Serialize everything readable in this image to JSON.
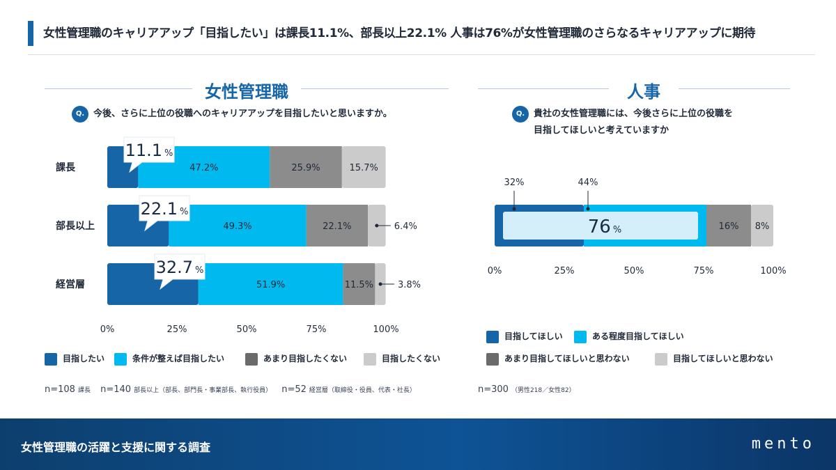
{
  "header": {
    "title": "女性管理職のキャリアアップ「目指したい」は課長11.1%、部長以上22.1% 人事は76%が女性管理職のさらなるキャリアアップに期待"
  },
  "colors": {
    "brand": "#1565a7",
    "c1": "#1565a7",
    "c2": "#00b9ee",
    "c3": "#8c8c8c",
    "c4": "#cbcbcb",
    "highlight": "#d4eefa"
  },
  "left": {
    "section_title": "女性管理職",
    "question_badge": "Q.",
    "question": "今後、さらに上位の役職へのキャリアアップを目指したいと思いますか。",
    "legend": [
      "目指したい",
      "条件が整えば目指したい",
      "あまり目指したくない",
      "目指したくない"
    ],
    "notes": [
      {
        "n": "n=108",
        "desc": "課長"
      },
      {
        "n": "n=140",
        "desc": "部長以上（部長、部門長・事業部長、執行役員）"
      },
      {
        "n": "n=52",
        "desc": "経営層（取締役・役員、代表・社長）"
      }
    ]
  },
  "right": {
    "section_title": "人事",
    "question_badge": "Q.",
    "question_line1": "貴社の女性管理職には、今後さらに上位の役職を",
    "question_line2": "目指してほしいと考えていますか",
    "legend": [
      "目指してほしい",
      "ある程度目指してほしい",
      "あまり目指してほしいと思わない",
      "目指してほしいと思わない"
    ],
    "note": {
      "n": "n=300",
      "desc": "（男性218／女性82）"
    }
  },
  "footer": {
    "title": "女性管理職の活躍と支援に関する調査",
    "logo": "mento"
  },
  "chart_data": [
    {
      "type": "bar",
      "orientation": "horizontal",
      "stacked": true,
      "title": "女性管理職",
      "categories": [
        "課長",
        "部長以上",
        "経営層"
      ],
      "series": [
        {
          "name": "目指したい",
          "values": [
            11.1,
            22.1,
            32.7
          ]
        },
        {
          "name": "条件が整えば目指したい",
          "values": [
            47.2,
            49.3,
            51.9
          ]
        },
        {
          "name": "あまり目指したくない",
          "values": [
            25.9,
            22.1,
            11.5
          ]
        },
        {
          "name": "目指したくない",
          "values": [
            15.7,
            6.4,
            3.8
          ]
        }
      ],
      "callout_values": [
        "11.1",
        "22.1",
        "32.7"
      ],
      "percent_sign": "%",
      "xlim": [
        0,
        100
      ],
      "xticks": [
        "0%",
        "25%",
        "50%",
        "75%",
        "100%"
      ]
    },
    {
      "type": "bar",
      "orientation": "horizontal",
      "stacked": true,
      "title": "人事",
      "categories": [
        "人事"
      ],
      "series": [
        {
          "name": "目指してほしい",
          "values": [
            32
          ]
        },
        {
          "name": "ある程度目指してほしい",
          "values": [
            44
          ]
        },
        {
          "name": "あまり目指してほしいと思わない",
          "values": [
            16
          ]
        },
        {
          "name": "目指してほしいと思わない",
          "values": [
            8
          ]
        }
      ],
      "combined_value": "76",
      "percent_sign": "%",
      "xlim": [
        0,
        100
      ],
      "xticks": [
        "0%",
        "25%",
        "50%",
        "75%",
        "100%"
      ]
    }
  ]
}
